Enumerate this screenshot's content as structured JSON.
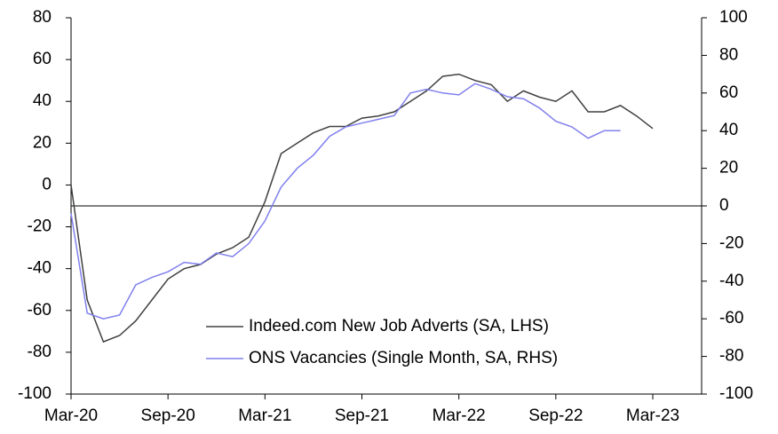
{
  "chart_data": {
    "type": "line",
    "categories": [
      "Mar-20",
      null,
      null,
      null,
      null,
      null,
      "Sep-20",
      null,
      null,
      null,
      null,
      null,
      "Mar-21",
      null,
      null,
      null,
      null,
      null,
      "Sep-21",
      null,
      null,
      null,
      null,
      null,
      "Mar-22",
      null,
      null,
      null,
      null,
      null,
      "Sep-22",
      null,
      null,
      null,
      null,
      null,
      "Mar-23"
    ],
    "ylim": [
      -100,
      80
    ],
    "yticks": [
      -100,
      -80,
      -60,
      -40,
      -20,
      0,
      20,
      40,
      60,
      80
    ],
    "y2lim": [
      -100,
      100
    ],
    "y2ticks": [
      -100,
      -80,
      -60,
      -40,
      -20,
      0,
      20,
      40,
      60,
      80,
      100
    ],
    "legend": "lower right",
    "series": [
      {
        "name": "Indeed.com New Job Adverts (SA, LHS)",
        "color": "#404040",
        "values": [
          0,
          -55,
          -75,
          -72,
          -65,
          -55,
          -45,
          -40,
          -38,
          -33,
          -30,
          -25,
          -8,
          15,
          20,
          25,
          28,
          28,
          32,
          33,
          35,
          40,
          45,
          52,
          53,
          50,
          48,
          40,
          45,
          42,
          40,
          45,
          35,
          35,
          38,
          33,
          27
        ]
      },
      {
        "name": "ONS Vacancies (Single Month, SA, RHS)",
        "color": "#8080ee",
        "axis": "y2",
        "values": [
          -4,
          -57,
          -60,
          -58,
          -42,
          -38,
          -35,
          -30,
          -31,
          -25,
          -27,
          -20,
          -8,
          10,
          20,
          27,
          37,
          42,
          44,
          46,
          48,
          60,
          62,
          60,
          59,
          65,
          62,
          58,
          57,
          52,
          45,
          42,
          36,
          40,
          40,
          null,
          null
        ]
      }
    ]
  }
}
